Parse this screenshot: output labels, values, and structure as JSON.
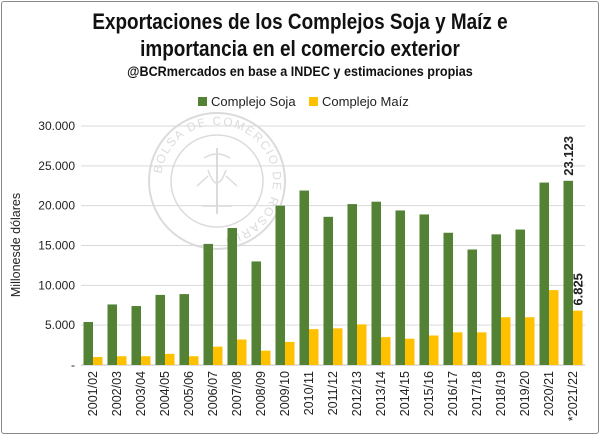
{
  "title_line1": "Exportaciones de los Complejos Soja y Maíz e",
  "title_line2": "importancia en el comercio exterior",
  "subtitle": "@BCRmercados en base a INDEC y estimaciones propias",
  "watermark_text": "BOLSA DE COMERCIO DE ROSARIO",
  "colors": {
    "soja": "#548235",
    "maiz": "#FFC000",
    "grid": "#d9d9d9"
  },
  "chart_data": {
    "type": "bar",
    "ylabel": "Millonesde dólares",
    "ylim": [
      0,
      30000
    ],
    "yticks": [
      0,
      5000,
      10000,
      15000,
      20000,
      25000,
      30000
    ],
    "ytick_labels": [
      "-",
      "5.000",
      "10.000",
      "15.000",
      "20.000",
      "25.000",
      "30.000"
    ],
    "grid": true,
    "legend_position": "top",
    "categories": [
      "2001/02",
      "2002/03",
      "2003/04",
      "2004/05",
      "2005/06",
      "2006/07",
      "2007/08",
      "2008/09",
      "2009/10",
      "2010/11",
      "2011/12",
      "2012/13",
      "2013/14",
      "2014/15",
      "2015/16",
      "2016/17",
      "2017/18",
      "2018/19",
      "2019/20",
      "2020/21",
      "*2021/22"
    ],
    "series": [
      {
        "name": "Complejo Soja",
        "values": [
          5400,
          7600,
          7400,
          8800,
          8900,
          15200,
          17200,
          13000,
          20000,
          21900,
          18600,
          20200,
          20500,
          19400,
          18900,
          16600,
          14500,
          16400,
          17000,
          22900,
          23123
        ]
      },
      {
        "name": "Complejo Maíz",
        "values": [
          1000,
          1100,
          1100,
          1400,
          1100,
          2300,
          3200,
          1800,
          2900,
          4500,
          4600,
          5100,
          3500,
          3300,
          3700,
          4100,
          4100,
          6000,
          6000,
          9400,
          6825
        ]
      }
    ],
    "annotations": [
      {
        "category": "*2021/22",
        "series": "Complejo Soja",
        "label": "23.123"
      },
      {
        "category": "*2021/22",
        "series": "Complejo Maíz",
        "label": "6.825"
      }
    ]
  }
}
